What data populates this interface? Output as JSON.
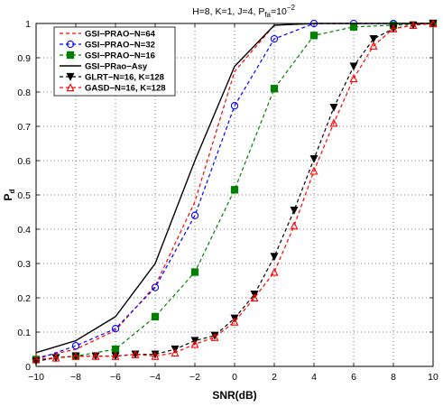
{
  "chart_data": {
    "type": "line",
    "title": {
      "main": "H=8, K=1, J=4, P",
      "sub": "fa",
      "eq": "=10",
      "exp": "−2"
    },
    "xlabel": "SNR(dB)",
    "ylabel": {
      "main": "P",
      "sub": "d"
    },
    "xlim": [
      -10,
      10
    ],
    "ylim": [
      0,
      1
    ],
    "x_ticks": [
      -10,
      -8,
      -6,
      -4,
      -2,
      0,
      2,
      4,
      6,
      8,
      10
    ],
    "y_ticks": [
      0,
      0.1,
      0.2,
      0.3,
      0.4,
      0.5,
      0.6,
      0.7,
      0.8,
      0.9,
      1
    ],
    "x_tick_labels": [
      "−10",
      "−8",
      "−6",
      "−4",
      "−2",
      "0",
      "2",
      "4",
      "6",
      "8",
      "10"
    ],
    "y_tick_labels": [
      "0",
      "0.1",
      "0.2",
      "0.3",
      "0.4",
      "0.5",
      "0.6",
      "0.7",
      "0.8",
      "0.9",
      "1"
    ],
    "grid": true,
    "legend_position": "top-left",
    "series": [
      {
        "name": "GSI−PRAO−N=64",
        "color": "#ff0000",
        "dash": "dashed",
        "marker": "none",
        "x": [
          -10,
          -8,
          -6,
          -4,
          -2,
          0,
          2,
          4,
          6,
          8,
          10
        ],
        "y": [
          0.025,
          0.05,
          0.105,
          0.235,
          0.48,
          0.86,
          0.995,
          1,
          1,
          1,
          1
        ]
      },
      {
        "name": "GSI−PRAO−N=32",
        "color": "#0000ff",
        "dash": "dashed",
        "marker": "circle",
        "x": [
          -10,
          -8,
          -6,
          -4,
          -2,
          0,
          2,
          4,
          6,
          8,
          10
        ],
        "y": [
          0.02,
          0.06,
          0.11,
          0.23,
          0.44,
          0.76,
          0.955,
          1,
          1,
          1,
          1
        ]
      },
      {
        "name": "GSI−PRAO−N=16",
        "color": "#007f00",
        "dash": "dashed",
        "marker": "square",
        "x": [
          -10,
          -8,
          -6,
          -4,
          -2,
          0,
          2,
          4,
          6,
          8,
          10
        ],
        "y": [
          0.02,
          0.03,
          0.05,
          0.145,
          0.275,
          0.515,
          0.81,
          0.965,
          0.99,
          0.995,
          1
        ]
      },
      {
        "name": "GSI−PRao−Asy",
        "color": "#000000",
        "dash": "solid",
        "marker": "none",
        "x": [
          -10,
          -8,
          -6,
          -4,
          -2,
          0,
          2,
          4,
          6,
          8,
          10
        ],
        "y": [
          0.04,
          0.075,
          0.145,
          0.3,
          0.6,
          0.875,
          0.995,
          1,
          1,
          1,
          1
        ]
      },
      {
        "name": "GLRT−N=16, K=128",
        "color": "#000000",
        "dash": "dashed",
        "marker": "triangle-down",
        "x": [
          -10,
          -9,
          -8,
          -7,
          -6,
          -5,
          -4,
          -3,
          -2,
          -1,
          0,
          1,
          2,
          3,
          4,
          5,
          6,
          7,
          8,
          9,
          10
        ],
        "y": [
          0.015,
          0.025,
          0.03,
          0.03,
          0.03,
          0.035,
          0.035,
          0.05,
          0.075,
          0.09,
          0.14,
          0.21,
          0.32,
          0.455,
          0.605,
          0.755,
          0.875,
          0.955,
          0.985,
          0.995,
          1
        ]
      },
      {
        "name": "GASD−N=16, K=128",
        "color": "#ff0000",
        "dash": "dashed",
        "marker": "triangle-up",
        "x": [
          -10,
          -9,
          -8,
          -7,
          -6,
          -5,
          -4,
          -3,
          -2,
          -1,
          0,
          1,
          2,
          3,
          4,
          5,
          6,
          7,
          8,
          9,
          10
        ],
        "y": [
          0.02,
          0.025,
          0.03,
          0.03,
          0.03,
          0.035,
          0.03,
          0.04,
          0.065,
          0.085,
          0.13,
          0.2,
          0.275,
          0.41,
          0.57,
          0.71,
          0.84,
          0.935,
          0.985,
          0.995,
          1
        ]
      }
    ]
  }
}
